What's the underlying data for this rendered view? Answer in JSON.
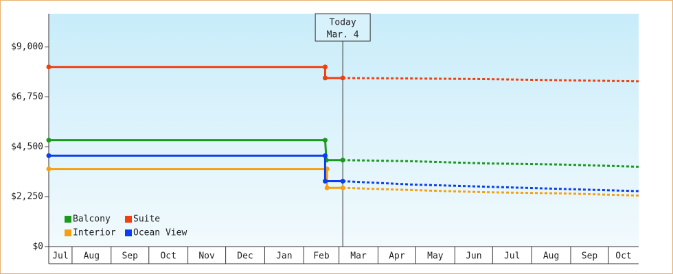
{
  "chart_data": {
    "type": "line",
    "xlim": [
      12.5,
      481
    ],
    "xticks": [
      {
        "value": 0,
        "label": "Jul"
      },
      {
        "value": 31,
        "label": "Aug"
      },
      {
        "value": 62,
        "label": "Sep"
      },
      {
        "value": 92,
        "label": "Oct"
      },
      {
        "value": 123,
        "label": "Nov"
      },
      {
        "value": 153,
        "label": "Dec"
      },
      {
        "value": 184,
        "label": "Jan"
      },
      {
        "value": 215,
        "label": "Feb"
      },
      {
        "value": 243,
        "label": "Mar"
      },
      {
        "value": 274,
        "label": "Apr"
      },
      {
        "value": 304,
        "label": "May"
      },
      {
        "value": 335,
        "label": "Jun"
      },
      {
        "value": 365,
        "label": "Jul"
      },
      {
        "value": 396,
        "label": "Aug"
      },
      {
        "value": 427,
        "label": "Sep"
      },
      {
        "value": 457,
        "label": "Oct"
      }
    ],
    "ylim": [
      0,
      10500
    ],
    "yticks": [
      {
        "value": 0,
        "label": "$0"
      },
      {
        "value": 2250,
        "label": "$2,250"
      },
      {
        "value": 4500,
        "label": "$4,500"
      },
      {
        "value": 6750,
        "label": "$6,750"
      },
      {
        "value": 9000,
        "label": "$9,000"
      }
    ],
    "annotation": {
      "x": 246,
      "lines": [
        "Today",
        "Mar. 4"
      ]
    },
    "series": [
      {
        "name": "Balcony",
        "color": "#1a9a1a",
        "x": [
          12.5,
          232,
          233,
          246
        ],
        "values": [
          4800,
          4800,
          3900,
          3900
        ],
        "forecast_x": [
          246,
          300,
          360,
          420,
          481
        ],
        "forecast_values": [
          3900,
          3850,
          3750,
          3700,
          3600
        ]
      },
      {
        "name": "Suite",
        "color": "#f04010",
        "x": [
          12.5,
          232,
          232,
          246
        ],
        "values": [
          8100,
          8100,
          7600,
          7600
        ],
        "forecast_x": [
          246,
          300,
          360,
          420,
          481
        ],
        "forecast_values": [
          7600,
          7580,
          7550,
          7500,
          7450
        ]
      },
      {
        "name": "Interior",
        "color": "#f5a010",
        "x": [
          12.5,
          233.5,
          233.5,
          246
        ],
        "values": [
          3500,
          3500,
          2650,
          2650
        ],
        "forecast_x": [
          246,
          300,
          360,
          420,
          481
        ],
        "forecast_values": [
          2650,
          2550,
          2450,
          2400,
          2300
        ]
      },
      {
        "name": "Ocean View",
        "color": "#0a3ef0",
        "x": [
          12.5,
          232,
          232,
          246
        ],
        "values": [
          4100,
          4100,
          2950,
          2950
        ],
        "forecast_x": [
          246,
          300,
          360,
          420,
          481
        ],
        "forecast_values": [
          2950,
          2800,
          2700,
          2600,
          2500
        ]
      }
    ]
  }
}
